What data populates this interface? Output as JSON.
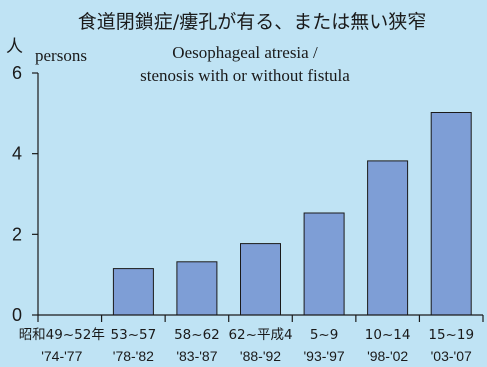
{
  "chart_data": {
    "type": "bar",
    "title_jp": "食道閉鎖症/瘻孔が有る、または無い狭窄",
    "title_en_line1": "Oesophageal atresia /",
    "title_en_line2": "stenosis with or without fistula",
    "ylabel_jp": "人",
    "ylabel_en": "persons",
    "ylim": [
      0,
      6
    ],
    "yticks": [
      0,
      2,
      4,
      6
    ],
    "categories": [
      {
        "line1": "昭和49~52年",
        "line2": "'74-'77"
      },
      {
        "line1": "53~57",
        "line2": "'78-'82"
      },
      {
        "line1": "58~62",
        "line2": "'83-'87"
      },
      {
        "line1": "62~平成4",
        "line2": "'88-'92"
      },
      {
        "line1": "5~9",
        "line2": "'93-'97"
      },
      {
        "line1": "10~14",
        "line2": "'98-'02"
      },
      {
        "line1": "15~19",
        "line2": "'03-'07"
      }
    ],
    "values": [
      0,
      1.15,
      1.32,
      1.77,
      2.53,
      3.82,
      5.02
    ],
    "bar_color": "#7e9ed6",
    "background_color": "#bfe3f4",
    "grid": false
  }
}
